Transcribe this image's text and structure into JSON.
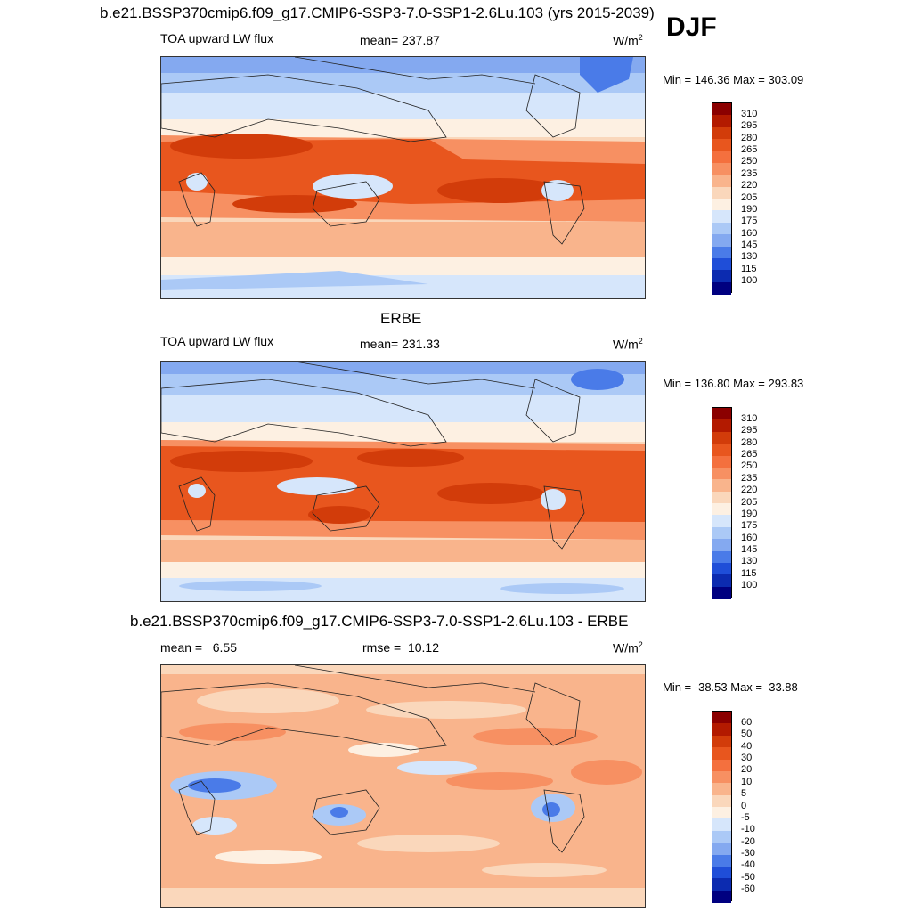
{
  "figure": {
    "season": "DJF"
  },
  "panels": [
    {
      "title": "b.e21.BSSP370cmip6.f09_g17.CMIP6-SSP3-7.0-SSP1-2.6Lu.103 (yrs 2015-2039)",
      "left_label": "TOA upward LW flux",
      "center_label": "mean= 237.87",
      "units": "W/m",
      "units_sup": "2",
      "minmax": "Min = 146.36 Max = 303.09",
      "colorbar_ticks": [
        "310",
        "295",
        "280",
        "265",
        "250",
        "235",
        "220",
        "205",
        "190",
        "175",
        "160",
        "145",
        "130",
        "115",
        "100"
      ],
      "colorbar_colors": [
        "#8b0000",
        "#b31a00",
        "#d23c0a",
        "#e8561e",
        "#f4703e",
        "#f79062",
        "#f9b48c",
        "#fad7bb",
        "#fdf0e2",
        "#d6e6fb",
        "#abc9f6",
        "#84a9f0",
        "#4a7be8",
        "#1f4ed8",
        "#0c2bb0",
        "#000080"
      ],
      "panel_values": {
        "global_mean": 237.87,
        "min": 146.36,
        "max": 303.09
      }
    },
    {
      "title": "ERBE",
      "left_label": "TOA upward LW flux",
      "center_label": "mean= 231.33",
      "units": "W/m",
      "units_sup": "2",
      "minmax": "Min = 136.80 Max = 293.83",
      "colorbar_ticks": [
        "310",
        "295",
        "280",
        "265",
        "250",
        "235",
        "220",
        "205",
        "190",
        "175",
        "160",
        "145",
        "130",
        "115",
        "100"
      ],
      "colorbar_colors": [
        "#8b0000",
        "#b31a00",
        "#d23c0a",
        "#e8561e",
        "#f4703e",
        "#f79062",
        "#f9b48c",
        "#fad7bb",
        "#fdf0e2",
        "#d6e6fb",
        "#abc9f6",
        "#84a9f0",
        "#4a7be8",
        "#1f4ed8",
        "#0c2bb0",
        "#000080"
      ],
      "panel_values": {
        "global_mean": 231.33,
        "min": 136.8,
        "max": 293.83
      }
    },
    {
      "title": "b.e21.BSSP370cmip6.f09_g17.CMIP6-SSP3-7.0-SSP1-2.6Lu.103 - ERBE",
      "left_label": "mean =   6.55",
      "center_label": "rmse =  10.12",
      "units": "W/m",
      "units_sup": "2",
      "minmax": "Min = -38.53 Max =  33.88",
      "colorbar_ticks": [
        "60",
        "50",
        "40",
        "30",
        "20",
        "10",
        "5",
        "0",
        "-5",
        "-10",
        "-20",
        "-30",
        "-40",
        "-50",
        "-60"
      ],
      "colorbar_colors": [
        "#8b0000",
        "#b31a00",
        "#d23c0a",
        "#e8561e",
        "#f4703e",
        "#f79062",
        "#f9b48c",
        "#fad7bb",
        "#fdf0e2",
        "#d6e6fb",
        "#abc9f6",
        "#84a9f0",
        "#4a7be8",
        "#1f4ed8",
        "#0c2bb0",
        "#000080"
      ],
      "panel_values": {
        "mean": 6.55,
        "rmse": 10.12,
        "min": -38.53,
        "max": 33.88
      }
    }
  ]
}
